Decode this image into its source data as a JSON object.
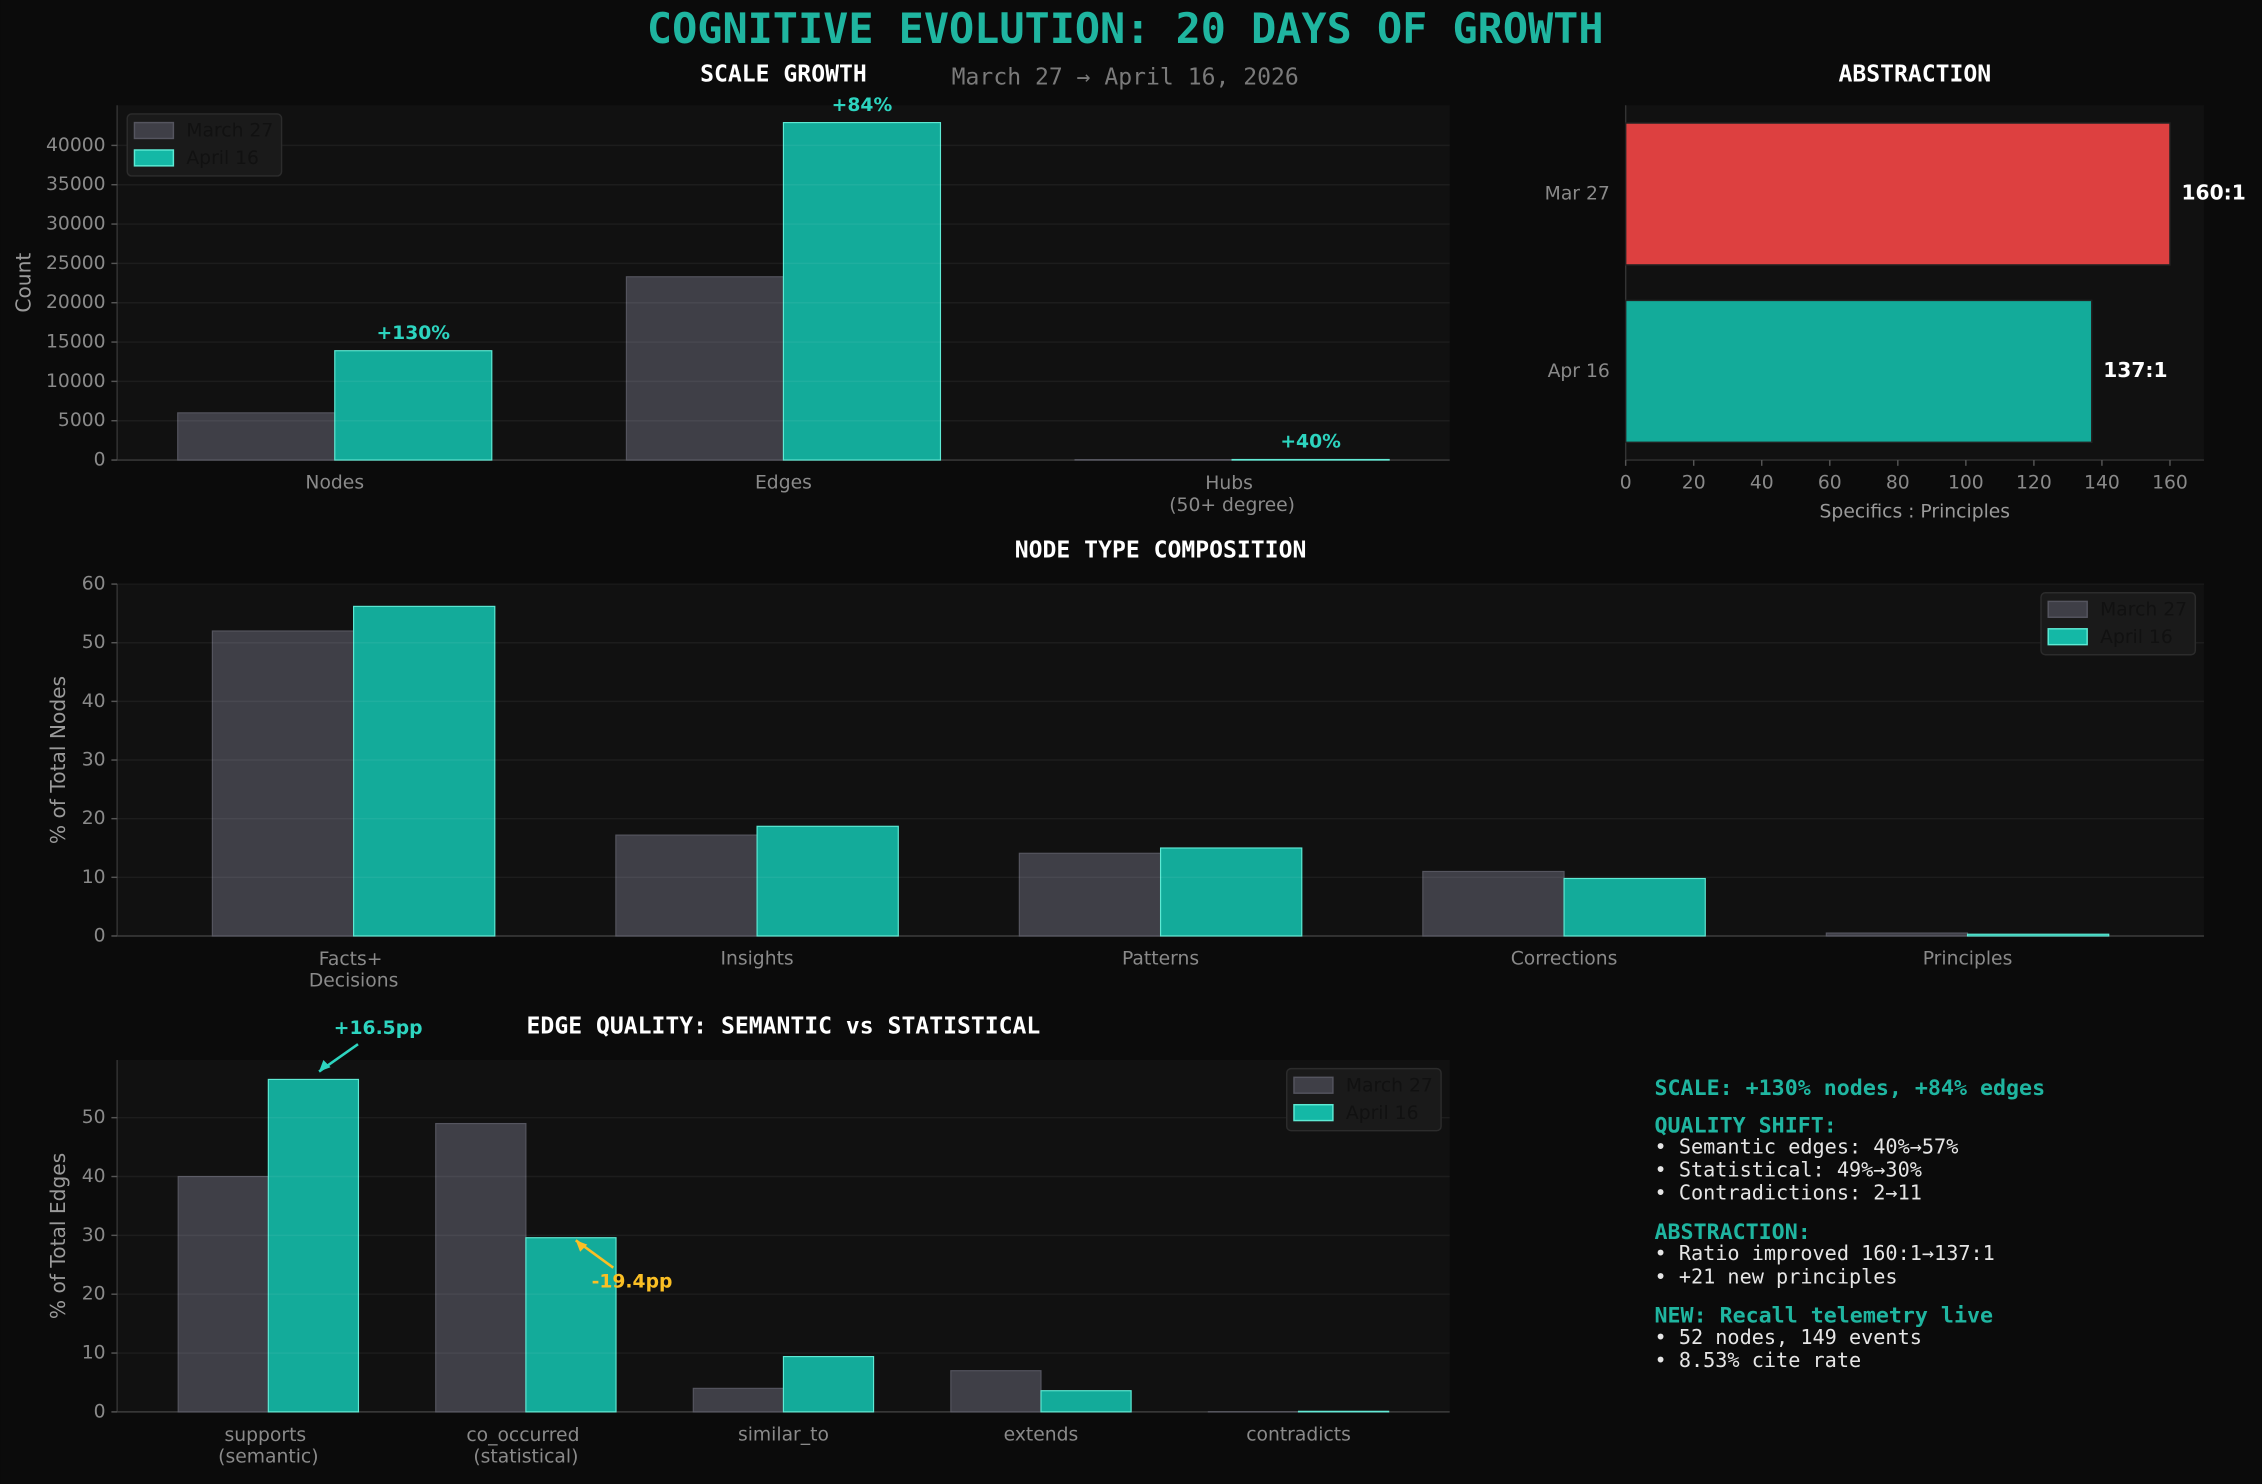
{
  "title": "COGNITIVE EVOLUTION: 20 DAYS OF GROWTH",
  "subtitle": "March 27 → April 16, 2026",
  "chart_data": [
    {
      "type": "bar",
      "title": "SCALE GROWTH",
      "ylabel": "Count",
      "categories": [
        "Nodes",
        "Edges",
        "Hubs\n(50+ degree)"
      ],
      "series": [
        {
          "name": "March 27",
          "color": "#3f3f47",
          "values": [
            6000,
            23300,
            50
          ]
        },
        {
          "name": "April 16",
          "color": "#14b8a6",
          "values": [
            13900,
            42900,
            70
          ]
        }
      ],
      "ylim": [
        0,
        45100
      ],
      "yticks": [
        0,
        5000,
        10000,
        15000,
        20000,
        25000,
        30000,
        35000,
        40000
      ],
      "grid": true,
      "legend": "upper left",
      "annotations": [
        "+130%",
        "+84%",
        "+40%"
      ],
      "annotation_colors": [
        "#2dd4bf",
        "#2dd4bf",
        "#2dd4bf"
      ]
    },
    {
      "type": "barh",
      "title": "ABSTRACTION",
      "xlabel": "Specifics : Principles",
      "categories": [
        "Mar 27",
        "Apr 16"
      ],
      "values": [
        160,
        137
      ],
      "value_labels": [
        "160:1",
        "137:1"
      ],
      "colors": [
        "#ef4444",
        "#14b8a6"
      ],
      "xlim": [
        0,
        170
      ],
      "xticks": [
        0,
        20,
        40,
        60,
        80,
        100,
        120,
        140,
        160
      ]
    },
    {
      "type": "bar",
      "title": "NODE TYPE COMPOSITION",
      "ylabel": "% of Total Nodes",
      "categories": [
        "Facts+\nDecisions",
        "Insights",
        "Patterns",
        "Corrections",
        "Principles"
      ],
      "series": [
        {
          "name": "March 27",
          "color": "#3f3f47",
          "values": [
            52,
            17.2,
            14.1,
            11,
            0.5
          ]
        },
        {
          "name": "April 16",
          "color": "#14b8a6",
          "values": [
            56.2,
            18.7,
            15,
            9.8,
            0.3
          ]
        }
      ],
      "ylim": [
        0,
        60
      ],
      "yticks": [
        0,
        10,
        20,
        30,
        40,
        50,
        60
      ],
      "grid": true,
      "legend": "upper right"
    },
    {
      "type": "bar",
      "title": "EDGE QUALITY: SEMANTIC vs STATISTICAL",
      "ylabel": "% of Total Edges",
      "categories": [
        "supports\n(semantic)",
        "co_occurred\n(statistical)",
        "similar_to",
        "extends",
        "contradicts"
      ],
      "series": [
        {
          "name": "March 27",
          "color": "#3f3f47",
          "values": [
            40,
            49,
            4,
            7,
            0.02
          ]
        },
        {
          "name": "April 16",
          "color": "#14b8a6",
          "values": [
            56.5,
            29.6,
            9.4,
            3.6,
            0.1
          ]
        }
      ],
      "ylim": [
        0,
        59.8
      ],
      "yticks": [
        0,
        10,
        20,
        30,
        40,
        50
      ],
      "grid": true,
      "legend": "upper right",
      "annotations": [
        "+16.5pp",
        "-19.4pp"
      ],
      "annotation_colors": [
        "#2dd4bf",
        "#fbbf24"
      ]
    }
  ],
  "summary": [
    {
      "heading": "SCALE: +130% nodes, +84% edges",
      "lines": []
    },
    {
      "heading": "QUALITY SHIFT:",
      "lines": [
        "• Semantic edges: 40%→57%",
        "• Statistical: 49%→30%",
        "• Contradictions: 2→11"
      ]
    },
    {
      "heading": "ABSTRACTION:",
      "lines": [
        "• Ratio improved 160:1→137:1",
        "• +21 new principles"
      ]
    },
    {
      "heading": "NEW: Recall telemetry live",
      "lines": [
        "• 52 nodes, 149 events",
        "• 8.53% cite rate"
      ]
    }
  ]
}
